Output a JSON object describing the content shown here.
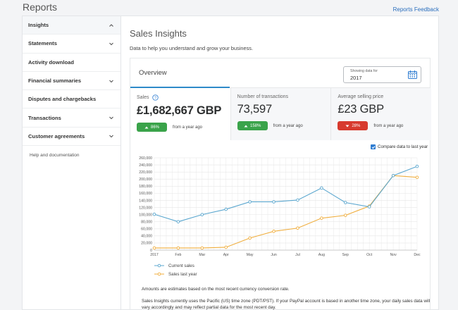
{
  "header": {
    "title": "Reports",
    "feedback": "Reports Feedback"
  },
  "sidebar": {
    "items": [
      {
        "label": "Insights",
        "active": true,
        "chevron": "up"
      },
      {
        "label": "Statements",
        "chevron": "down"
      },
      {
        "label": "Activity download",
        "chevron": ""
      },
      {
        "label": "Financial summaries",
        "chevron": "down"
      },
      {
        "label": "Disputes and chargebacks",
        "chevron": ""
      },
      {
        "label": "Transactions",
        "chevron": "down"
      },
      {
        "label": "Customer agreements",
        "chevron": "down"
      }
    ],
    "help": "Help and documentation"
  },
  "main": {
    "title": "Sales Insights",
    "subtitle": "Data to help you understand and grow your business.",
    "overview": {
      "label": "Overview",
      "date_caption": "Showing data for",
      "date_value": "2017",
      "metrics": [
        {
          "label": "Sales",
          "value": "£1,682,667 GBP",
          "change": "86%",
          "direction": "up",
          "period": "from a year ago"
        },
        {
          "label": "Number of transactions",
          "value": "73,597",
          "change": "158%",
          "direction": "up",
          "period": "from a year ago"
        },
        {
          "label": "Average selling price",
          "value": "£23 GBP",
          "change": "28%",
          "direction": "down",
          "period": "from a year ago"
        }
      ],
      "compare_label": "Compare data to last year"
    },
    "note1": "Amounts are estimates based on the most recent currency conversion rate.",
    "note2": "Sales Insights currently uses the Pacific (US) time zone (PDT/PST). If your PayPal account is based in another time zone, your daily sales data will vary accordingly and may reflect partial data for the most recent day."
  },
  "chart_data": {
    "type": "line",
    "x": [
      "2017",
      "Feb",
      "Mar",
      "Apr",
      "May",
      "Jun",
      "Jul",
      "Aug",
      "Sep",
      "Oct",
      "Nov",
      "Dec"
    ],
    "ylim": [
      0,
      260000
    ],
    "yticks": [
      0,
      20000,
      40000,
      60000,
      80000,
      100000,
      120000,
      140000,
      160000,
      180000,
      200000,
      220000,
      240000,
      260000
    ],
    "ytick_labels": [
      "0",
      "20,000",
      "40,000",
      "60,000",
      "80,000",
      "100,000",
      "120,000",
      "140,000",
      "160,000",
      "180,000",
      "200,000",
      "220,000",
      "240,000",
      "260,000"
    ],
    "grid": true,
    "series": [
      {
        "name": "Current sales",
        "color": "#5ba7cf",
        "values": [
          101000,
          80000,
          100000,
          115000,
          136000,
          136000,
          141000,
          175000,
          134000,
          122000,
          210000,
          236000
        ]
      },
      {
        "name": "Sales last year",
        "color": "#f0ae3e",
        "values": [
          6000,
          6000,
          6000,
          8000,
          34000,
          53000,
          62000,
          90000,
          98000,
          124000,
          210000,
          205000
        ]
      }
    ],
    "legend_position": "bottom-left"
  }
}
